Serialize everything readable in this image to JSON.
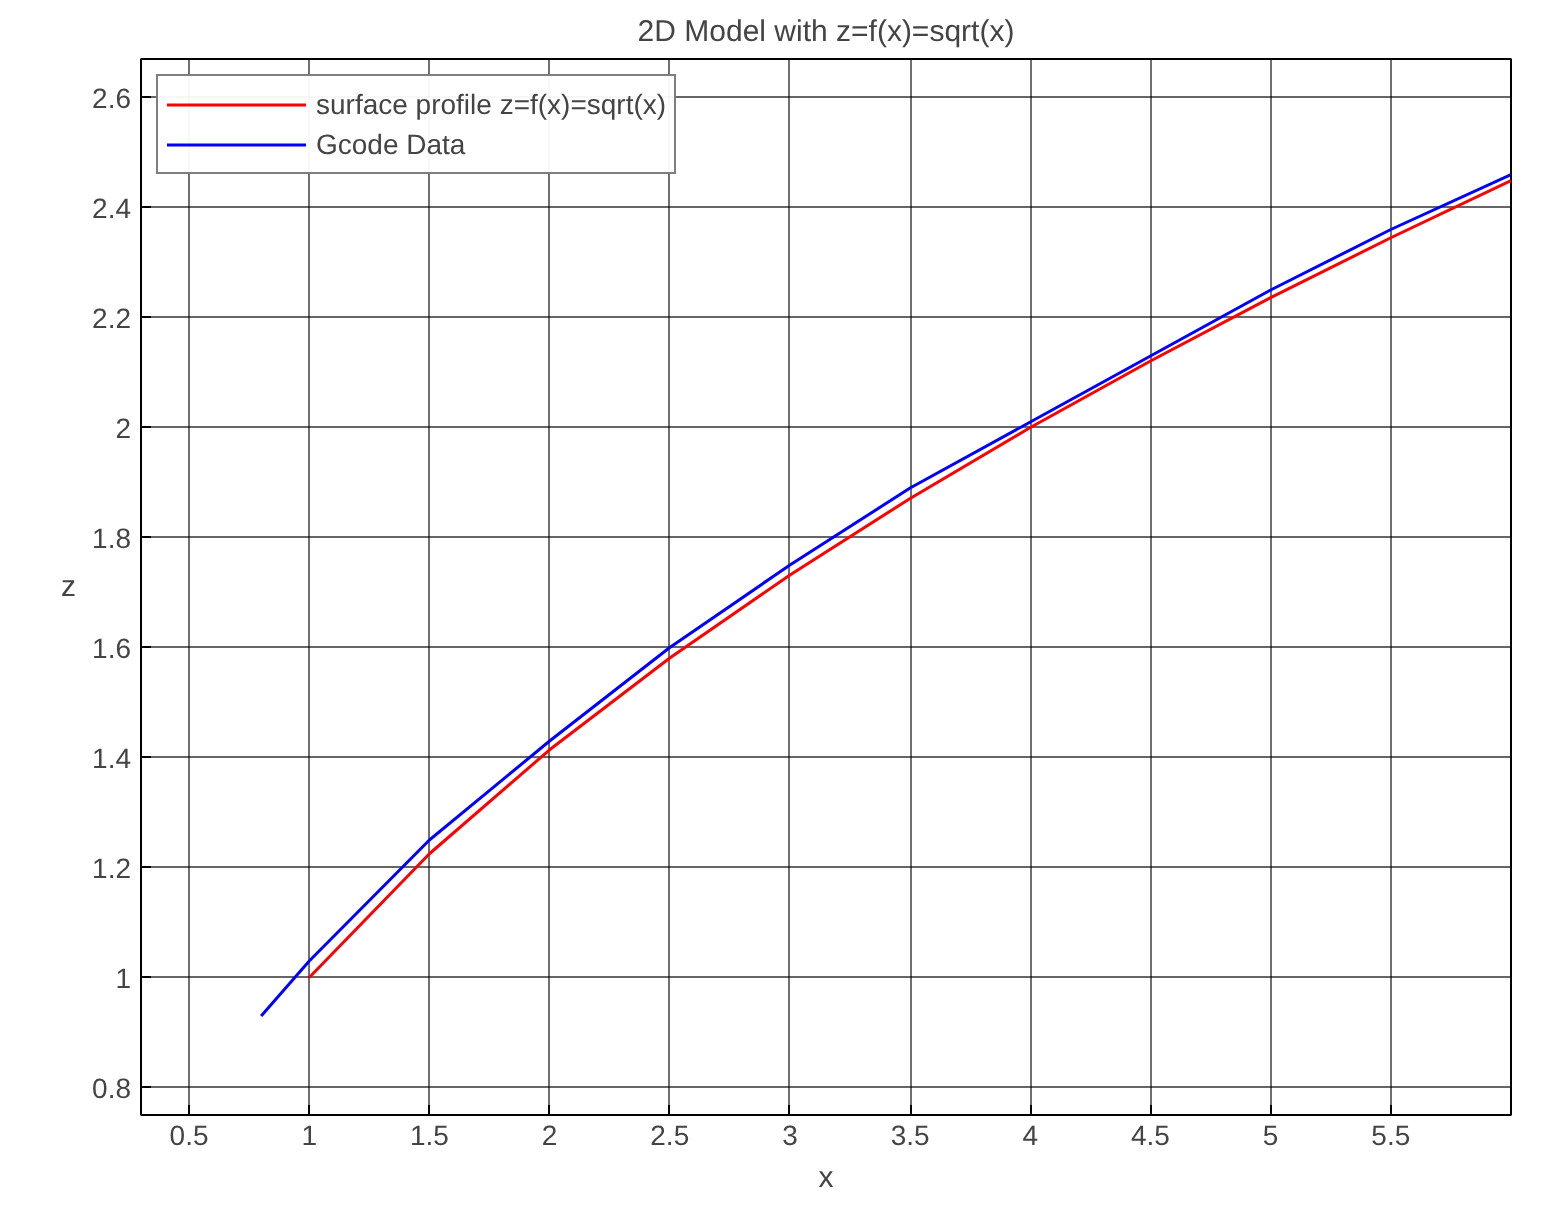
{
  "chart_data": {
    "type": "line",
    "title": "2D Model with z=f(x)=sqrt(x)",
    "xlabel": "x",
    "ylabel": "z",
    "xlim": [
      0.3,
      6
    ],
    "ylim": [
      0.75,
      2.67
    ],
    "xticks": [
      0.5,
      1,
      1.5,
      2,
      2.5,
      3,
      3.5,
      4,
      4.5,
      5,
      5.5
    ],
    "yticks": [
      0.8,
      1,
      1.2,
      1.4,
      1.6,
      1.8,
      2,
      2.2,
      2.4,
      2.6
    ],
    "grid": true,
    "legend": "top left",
    "marker": "none",
    "line_style": "solid",
    "series": [
      {
        "name": "surface profile z=f(x)=sqrt(x)",
        "color": "#ff0000",
        "x": [
          1,
          1.5,
          2,
          2.5,
          3,
          3.5,
          4,
          4.5,
          5,
          5.5,
          6
        ],
        "values": [
          1,
          1.225,
          1.414,
          1.581,
          1.732,
          1.871,
          2,
          2.121,
          2.236,
          2.345,
          2.449
        ]
      },
      {
        "name": "Gcode Data",
        "color": "#0000ff",
        "x": [
          0.8,
          1,
          1.5,
          2,
          2.5,
          3,
          3.5,
          4,
          4.5,
          5,
          5.5,
          6
        ],
        "values": [
          0.93,
          1.03,
          1.25,
          1.43,
          1.6,
          1.75,
          1.89,
          2.01,
          2.13,
          2.25,
          2.36,
          2.46
        ]
      }
    ]
  }
}
